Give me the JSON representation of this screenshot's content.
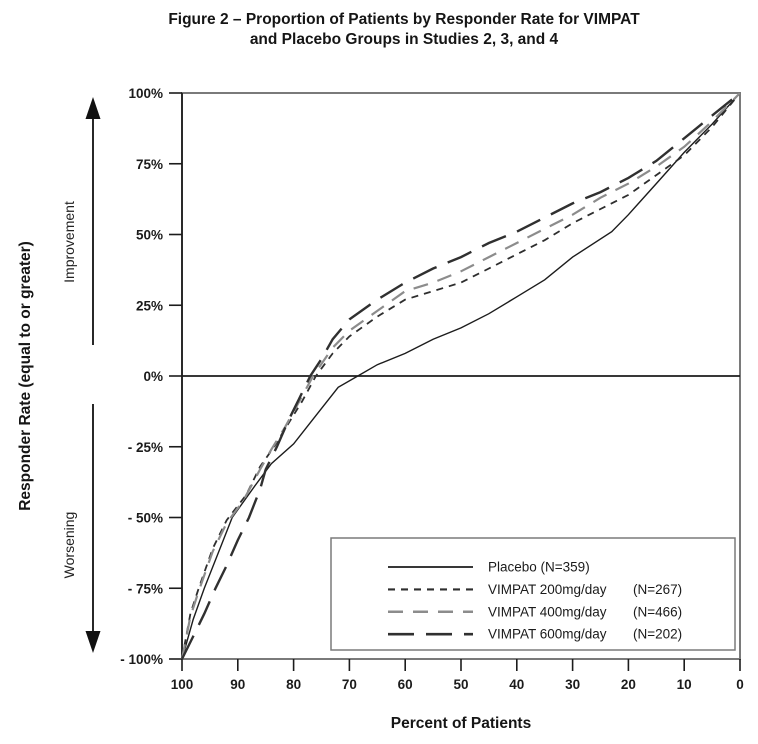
{
  "chart_data": {
    "type": "line",
    "title": "Figure 2 – Proportion of Patients by Responder Rate for VIMPAT and Placebo Groups in Studies 2, 3, and 4",
    "title_lines": [
      "Figure 2 – Proportion of Patients by Responder Rate for VIMPAT",
      "and Placebo Groups in Studies 2, 3, and 4"
    ],
    "xlabel": "Percent of Patients",
    "ylabel": "Responder Rate (equal to or greater)",
    "y_direction_labels": {
      "improvement": "Improvement",
      "worsening": "Worsening"
    },
    "x_axis": {
      "range": [
        100,
        0
      ],
      "reversed": true,
      "ticks": [
        {
          "value": 100,
          "label": "100"
        },
        {
          "value": 90,
          "label": "90"
        },
        {
          "value": 80,
          "label": "80"
        },
        {
          "value": 70,
          "label": "70"
        },
        {
          "value": 60,
          "label": "60"
        },
        {
          "value": 50,
          "label": "50"
        },
        {
          "value": 40,
          "label": "40"
        },
        {
          "value": 30,
          "label": "30"
        },
        {
          "value": 20,
          "label": "20"
        },
        {
          "value": 10,
          "label": "10"
        },
        {
          "value": 0,
          "label": "0"
        }
      ]
    },
    "y_axis": {
      "range": [
        -100,
        100
      ],
      "unit": "%",
      "ticks": [
        {
          "value": 100,
          "label": "100%"
        },
        {
          "value": 75,
          "label": "75%"
        },
        {
          "value": 50,
          "label": "50%"
        },
        {
          "value": 25,
          "label": "25%"
        },
        {
          "value": 0,
          "label": "0%"
        },
        {
          "value": -25,
          "label": "- 25%"
        },
        {
          "value": -50,
          "label": "- 50%"
        },
        {
          "value": -75,
          "label": "- 75%"
        },
        {
          "value": -100,
          "label": "- 100%"
        }
      ]
    },
    "grid": false,
    "zero_reference_line": true,
    "legend_position": "inside-bottom-right",
    "series": [
      {
        "id": "placebo",
        "name": "Placebo (N=359)",
        "n_label": "",
        "dash": "solid",
        "color": "#1c1c1c",
        "stroke_width": 1.4,
        "points": [
          [
            100,
            -100
          ],
          [
            98,
            -86
          ],
          [
            96,
            -75
          ],
          [
            93,
            -60
          ],
          [
            91,
            -50
          ],
          [
            87,
            -39
          ],
          [
            84,
            -31
          ],
          [
            80,
            -24
          ],
          [
            76,
            -14
          ],
          [
            72,
            -4
          ],
          [
            68.5,
            0
          ],
          [
            65,
            4
          ],
          [
            60,
            8
          ],
          [
            55,
            13
          ],
          [
            50,
            17
          ],
          [
            45,
            22
          ],
          [
            40,
            28
          ],
          [
            35,
            34
          ],
          [
            30,
            42
          ],
          [
            23,
            51
          ],
          [
            20,
            57
          ],
          [
            15,
            68
          ],
          [
            10,
            79
          ],
          [
            5,
            89
          ],
          [
            0,
            100
          ]
        ]
      },
      {
        "id": "vimpat-200",
        "name": "VIMPAT 200mg/day",
        "n_label": "(N=267)",
        "dash": "short-dash",
        "color": "#2e2e2e",
        "stroke_width": 1.8,
        "points": [
          [
            100,
            -100
          ],
          [
            98.5,
            -84
          ],
          [
            97,
            -75
          ],
          [
            94.5,
            -61
          ],
          [
            92,
            -51
          ],
          [
            88.5,
            -42
          ],
          [
            86,
            -32
          ],
          [
            83.5,
            -25
          ],
          [
            81,
            -17
          ],
          [
            78.5,
            -9
          ],
          [
            76,
            0
          ],
          [
            73,
            8
          ],
          [
            70,
            14
          ],
          [
            65,
            21
          ],
          [
            60,
            27
          ],
          [
            55,
            30
          ],
          [
            50,
            33
          ],
          [
            45,
            38
          ],
          [
            40,
            43
          ],
          [
            35,
            48
          ],
          [
            30,
            54
          ],
          [
            25,
            59
          ],
          [
            20,
            64
          ],
          [
            15,
            71
          ],
          [
            10,
            78
          ],
          [
            5,
            88
          ],
          [
            0,
            100
          ]
        ]
      },
      {
        "id": "vimpat-400",
        "name": "VIMPAT 400mg/day",
        "n_label": "(N=466)",
        "dash": "medium-dash",
        "color": "#8c8c8c",
        "stroke_width": 2.2,
        "points": [
          [
            100,
            -100
          ],
          [
            98.5,
            -85
          ],
          [
            97,
            -76
          ],
          [
            94.5,
            -62
          ],
          [
            92,
            -52
          ],
          [
            89,
            -44
          ],
          [
            86,
            -33
          ],
          [
            84,
            -26
          ],
          [
            81.5,
            -18
          ],
          [
            79,
            -9
          ],
          [
            76.5,
            0
          ],
          [
            73,
            10
          ],
          [
            70,
            16
          ],
          [
            65,
            23
          ],
          [
            60,
            30
          ],
          [
            55,
            33
          ],
          [
            50,
            37
          ],
          [
            45,
            42
          ],
          [
            40,
            47
          ],
          [
            35,
            52
          ],
          [
            30,
            57
          ],
          [
            25,
            63
          ],
          [
            20,
            68
          ],
          [
            15,
            74
          ],
          [
            10,
            81
          ],
          [
            5,
            90
          ],
          [
            0,
            100
          ]
        ]
      },
      {
        "id": "vimpat-600",
        "name": "VIMPAT 600mg/day",
        "n_label": "(N=202)",
        "dash": "long-dash",
        "color": "#303030",
        "stroke_width": 2.4,
        "points": [
          [
            100,
            -100
          ],
          [
            98,
            -92
          ],
          [
            96,
            -84
          ],
          [
            94,
            -75
          ],
          [
            92,
            -67
          ],
          [
            90,
            -58
          ],
          [
            88,
            -50
          ],
          [
            86,
            -40
          ],
          [
            85,
            -33
          ],
          [
            83,
            -25
          ],
          [
            81,
            -16
          ],
          [
            79,
            -8
          ],
          [
            77,
            0
          ],
          [
            75,
            6
          ],
          [
            73,
            13
          ],
          [
            70,
            20
          ],
          [
            65,
            27
          ],
          [
            60,
            33
          ],
          [
            55,
            38
          ],
          [
            50,
            42
          ],
          [
            45,
            47
          ],
          [
            40,
            51
          ],
          [
            35,
            56
          ],
          [
            30,
            61
          ],
          [
            25,
            65
          ],
          [
            20,
            70
          ],
          [
            15,
            76
          ],
          [
            10,
            84
          ],
          [
            5,
            92
          ],
          [
            0,
            100
          ]
        ]
      }
    ]
  }
}
